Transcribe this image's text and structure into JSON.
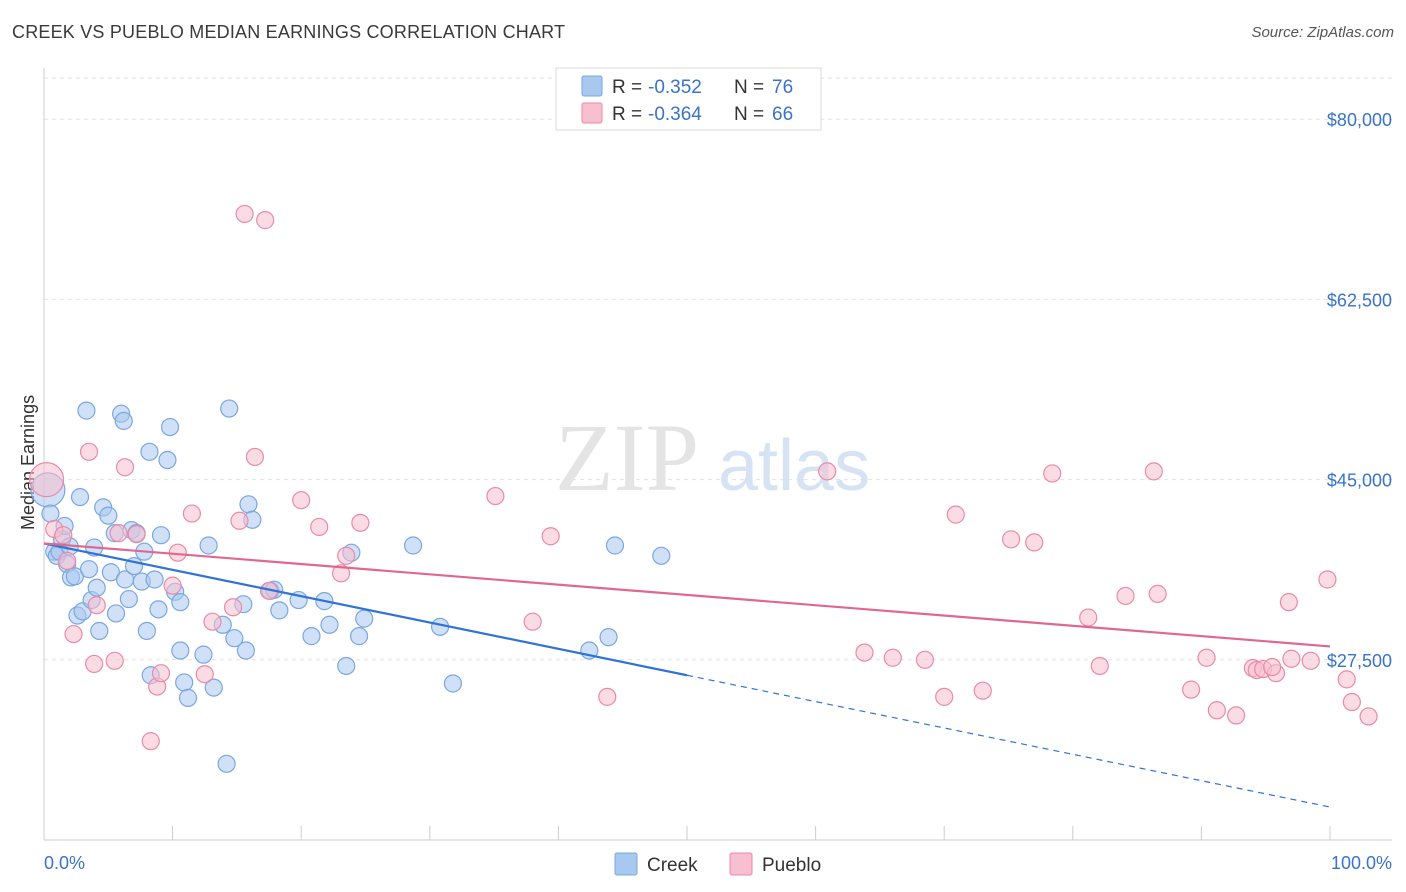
{
  "title": "CREEK VS PUEBLO MEDIAN EARNINGS CORRELATION CHART",
  "source": "Source: ZipAtlas.com",
  "watermark": {
    "zip": "ZIP",
    "atlas": "atlas"
  },
  "legend_top": [
    {
      "r_label": "R =",
      "r_value": "-0.352",
      "n_label": "N =",
      "n_value": "76",
      "color": "#a9c8f0",
      "stroke": "#7aa7e0"
    },
    {
      "r_label": "R =",
      "r_value": "-0.364",
      "n_label": "N =",
      "n_value": "66",
      "color": "#f7bfd0",
      "stroke": "#e98aa8"
    }
  ],
  "legend_bottom": [
    {
      "label": "Creek",
      "color": "#a9c8f0",
      "stroke": "#7aa7e0"
    },
    {
      "label": "Pueblo",
      "color": "#f7bfd0",
      "stroke": "#e98aa8"
    }
  ],
  "chart_data": {
    "type": "scatter",
    "title": "CREEK VS PUEBLO MEDIAN EARNINGS CORRELATION CHART",
    "xlabel": "",
    "ylabel": "Median Earnings",
    "xlim": [
      0,
      100
    ],
    "ylim": [
      10000,
      84000
    ],
    "x_tick_labels": [
      "0.0%",
      "100.0%"
    ],
    "y_ticks": [
      27500,
      45000,
      62500,
      80000
    ],
    "y_tick_labels": [
      "$27,500",
      "$45,000",
      "$62,500",
      "$80,000"
    ],
    "grid": true,
    "legend_position": "top-center",
    "series": [
      {
        "name": "Creek",
        "color": "#a9c8f0",
        "stroke": "#7aa7e0",
        "line_color": "#2f73d6",
        "trend": {
          "x0": 0,
          "y0": 38800,
          "x1": 50,
          "y1": 26000,
          "dash_to_x": 100,
          "dash_to_y": 13200
        },
        "points": [
          [
            0.3,
            44000
          ],
          [
            0.5,
            41700
          ],
          [
            0.8,
            38000
          ],
          [
            1.0,
            37600
          ],
          [
            1.2,
            38000
          ],
          [
            1.4,
            39200
          ],
          [
            1.6,
            40500
          ],
          [
            1.8,
            36800
          ],
          [
            2.0,
            38500
          ],
          [
            2.1,
            35500
          ],
          [
            2.4,
            35600
          ],
          [
            2.8,
            43300
          ],
          [
            2.6,
            31800
          ],
          [
            3.0,
            32200
          ],
          [
            3.3,
            51700
          ],
          [
            3.5,
            36300
          ],
          [
            3.7,
            33300
          ],
          [
            3.9,
            38400
          ],
          [
            4.1,
            34500
          ],
          [
            4.3,
            30300
          ],
          [
            4.6,
            42300
          ],
          [
            5.0,
            41500
          ],
          [
            5.2,
            36000
          ],
          [
            5.5,
            39800
          ],
          [
            5.6,
            32000
          ],
          [
            6.0,
            51400
          ],
          [
            6.2,
            50700
          ],
          [
            6.3,
            35300
          ],
          [
            6.6,
            33400
          ],
          [
            6.8,
            40100
          ],
          [
            7.0,
            36600
          ],
          [
            7.2,
            39800
          ],
          [
            7.6,
            35100
          ],
          [
            7.8,
            38000
          ],
          [
            8.0,
            30300
          ],
          [
            8.2,
            47700
          ],
          [
            8.3,
            26000
          ],
          [
            8.6,
            35300
          ],
          [
            8.9,
            32400
          ],
          [
            9.1,
            39600
          ],
          [
            9.6,
            46900
          ],
          [
            9.8,
            50100
          ],
          [
            10.2,
            34100
          ],
          [
            10.6,
            33100
          ],
          [
            10.6,
            28400
          ],
          [
            10.9,
            25300
          ],
          [
            11.2,
            23800
          ],
          [
            12.4,
            28000
          ],
          [
            12.8,
            38600
          ],
          [
            13.2,
            24800
          ],
          [
            13.9,
            30900
          ],
          [
            14.2,
            17400
          ],
          [
            14.4,
            51900
          ],
          [
            14.8,
            29600
          ],
          [
            15.5,
            32900
          ],
          [
            15.7,
            28400
          ],
          [
            15.9,
            42600
          ],
          [
            16.2,
            41100
          ],
          [
            17.6,
            34200
          ],
          [
            17.9,
            34300
          ],
          [
            18.3,
            32300
          ],
          [
            19.8,
            33300
          ],
          [
            20.8,
            29800
          ],
          [
            21.8,
            33200
          ],
          [
            22.2,
            30900
          ],
          [
            23.5,
            26900
          ],
          [
            23.9,
            37900
          ],
          [
            24.5,
            29800
          ],
          [
            24.9,
            31500
          ],
          [
            28.7,
            38600
          ],
          [
            30.8,
            30700
          ],
          [
            31.8,
            25200
          ],
          [
            42.4,
            28400
          ],
          [
            43.9,
            29700
          ],
          [
            44.4,
            38600
          ],
          [
            48.0,
            37600
          ]
        ]
      },
      {
        "name": "Pueblo",
        "color": "#f7bfd0",
        "stroke": "#e98aa8",
        "line_color": "#e0688f",
        "trend": {
          "x0": 0,
          "y0": 38800,
          "x1": 100,
          "y1": 28800
        },
        "points": [
          [
            0.2,
            45000
          ],
          [
            0.8,
            40200
          ],
          [
            1.5,
            39600
          ],
          [
            1.8,
            37100
          ],
          [
            2.3,
            30000
          ],
          [
            3.5,
            47700
          ],
          [
            3.9,
            27100
          ],
          [
            4.1,
            32800
          ],
          [
            5.5,
            27400
          ],
          [
            5.8,
            39800
          ],
          [
            6.3,
            46200
          ],
          [
            7.2,
            39700
          ],
          [
            8.3,
            19600
          ],
          [
            8.8,
            24900
          ],
          [
            9.1,
            26200
          ],
          [
            10.0,
            34700
          ],
          [
            10.4,
            37900
          ],
          [
            11.5,
            41700
          ],
          [
            12.5,
            26100
          ],
          [
            13.1,
            31200
          ],
          [
            14.7,
            32600
          ],
          [
            15.2,
            41000
          ],
          [
            15.6,
            70800
          ],
          [
            16.4,
            47200
          ],
          [
            17.2,
            70200
          ],
          [
            17.5,
            34200
          ],
          [
            20.0,
            43000
          ],
          [
            21.4,
            40400
          ],
          [
            23.1,
            35900
          ],
          [
            23.5,
            37600
          ],
          [
            24.6,
            40800
          ],
          [
            35.1,
            43400
          ],
          [
            38.0,
            31200
          ],
          [
            39.4,
            39500
          ],
          [
            43.8,
            23900
          ],
          [
            60.9,
            45800
          ],
          [
            63.8,
            28200
          ],
          [
            66.0,
            27700
          ],
          [
            68.5,
            27500
          ],
          [
            70.0,
            23900
          ],
          [
            70.9,
            41600
          ],
          [
            73.0,
            24500
          ],
          [
            75.2,
            39200
          ],
          [
            77.0,
            38900
          ],
          [
            78.4,
            45600
          ],
          [
            81.2,
            31600
          ],
          [
            82.1,
            26900
          ],
          [
            84.1,
            33700
          ],
          [
            86.3,
            45800
          ],
          [
            86.6,
            33900
          ],
          [
            89.2,
            24600
          ],
          [
            90.4,
            27700
          ],
          [
            91.2,
            22600
          ],
          [
            92.7,
            22100
          ],
          [
            94.0,
            26700
          ],
          [
            94.3,
            26500
          ],
          [
            94.8,
            26600
          ],
          [
            95.8,
            26200
          ],
          [
            96.8,
            33100
          ],
          [
            98.5,
            27400
          ],
          [
            99.8,
            35300
          ],
          [
            101.7,
            23400
          ],
          [
            101.3,
            25600
          ],
          [
            103.0,
            22000
          ],
          [
            95.5,
            26800
          ],
          [
            97.0,
            27600
          ]
        ]
      }
    ]
  }
}
